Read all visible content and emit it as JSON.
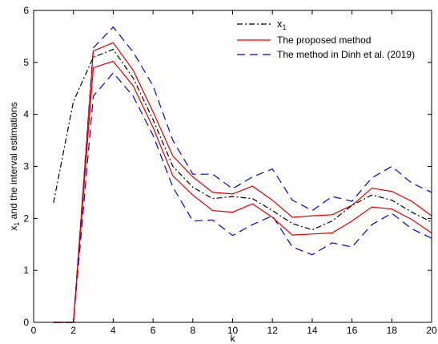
{
  "chart_data": {
    "type": "line",
    "title": "",
    "xlabel": "k",
    "ylabel_main": "x",
    "ylabel_sub": "1",
    "ylabel_rest": " and the interval estimations",
    "xlim": [
      0,
      20
    ],
    "ylim": [
      0,
      6
    ],
    "xticks": [
      0,
      2,
      4,
      6,
      8,
      10,
      12,
      14,
      16,
      18,
      20
    ],
    "yticks": [
      0,
      1,
      2,
      3,
      4,
      5,
      6
    ],
    "grid": false,
    "legend_position": "top-right",
    "series": [
      {
        "name": "x",
        "name_sub": "1",
        "style": "dashdot",
        "color": "#000000",
        "x": [
          1,
          2,
          3,
          4,
          5,
          6,
          7,
          8,
          9,
          10,
          11,
          12,
          13,
          14,
          15,
          16,
          17,
          18,
          19,
          20
        ],
        "y": [
          2.3,
          4.25,
          5.1,
          5.25,
          4.7,
          3.9,
          3.0,
          2.6,
          2.38,
          2.42,
          2.38,
          2.15,
          1.9,
          1.78,
          1.95,
          2.25,
          2.45,
          2.35,
          2.12,
          1.93
        ]
      },
      {
        "name": "The proposed method",
        "style": "solid",
        "color": "#e00000",
        "bounds": [
          {
            "x": [
              1,
              2,
              3,
              4,
              5,
              6,
              7,
              8,
              9,
              10,
              11,
              12,
              13,
              14,
              15,
              16,
              17,
              18,
              19,
              20
            ],
            "y": [
              0,
              0,
              5.22,
              5.38,
              4.85,
              4.05,
              3.2,
              2.8,
              2.5,
              2.47,
              2.62,
              2.35,
              2.02,
              2.05,
              2.07,
              2.25,
              2.58,
              2.52,
              2.33,
              2.05
            ]
          },
          {
            "x": [
              1,
              2,
              3,
              4,
              5,
              6,
              7,
              8,
              9,
              10,
              11,
              12,
              13,
              14,
              15,
              16,
              17,
              18,
              19,
              20
            ],
            "y": [
              0,
              0,
              4.9,
              5.02,
              4.55,
              3.75,
              2.82,
              2.45,
              2.15,
              2.12,
              2.28,
              2.02,
              1.68,
              1.7,
              1.72,
              1.95,
              2.22,
              2.18,
              1.98,
              1.72
            ]
          }
        ]
      },
      {
        "name": "The method in Dinh et al. (2019)",
        "style": "dashed",
        "color": "#0000dd",
        "bounds": [
          {
            "x": [
              1,
              2,
              3,
              4,
              5,
              6,
              7,
              8,
              9,
              10,
              11,
              12,
              13,
              14,
              15,
              16,
              17,
              18,
              19,
              20
            ],
            "y": [
              0,
              0,
              5.28,
              5.68,
              5.2,
              4.55,
              3.5,
              2.85,
              2.85,
              2.57,
              2.8,
              2.95,
              2.35,
              2.15,
              2.42,
              2.33,
              2.78,
              3.0,
              2.68,
              2.5
            ]
          },
          {
            "x": [
              1,
              2,
              3,
              4,
              5,
              6,
              7,
              8,
              9,
              10,
              11,
              12,
              13,
              14,
              15,
              16,
              17,
              18,
              19,
              20
            ],
            "y": [
              0,
              0,
              4.35,
              4.8,
              4.35,
              3.6,
              2.6,
              1.95,
              1.97,
              1.67,
              1.88,
              2.05,
              1.45,
              1.3,
              1.53,
              1.45,
              1.88,
              2.1,
              1.8,
              1.62
            ]
          }
        ]
      }
    ]
  }
}
